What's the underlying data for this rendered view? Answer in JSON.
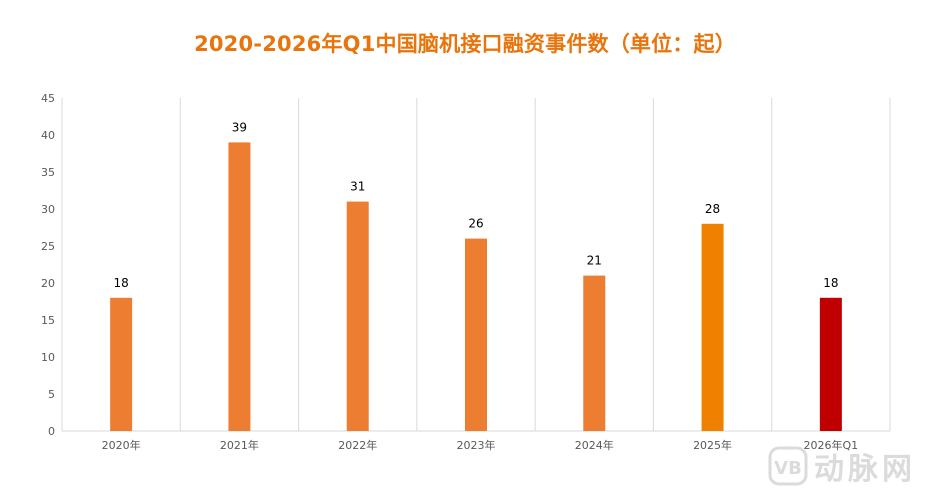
{
  "chart_data": {
    "type": "bar",
    "title": "2020-2026年Q1中国脑机接口融资事件数（单位：起）",
    "categories": [
      "2020年",
      "2021年",
      "2022年",
      "2023年",
      "2024年",
      "2025年",
      "2026年Q1"
    ],
    "values": [
      18,
      39,
      31,
      26,
      21,
      28,
      18
    ],
    "bar_colors": [
      "#ED7D31",
      "#ED7D31",
      "#ED7D31",
      "#ED7D31",
      "#ED7D31",
      "#F08000",
      "#C00000"
    ],
    "ylim": [
      0,
      45
    ],
    "yticks": [
      0,
      5,
      10,
      15,
      20,
      25,
      30,
      35,
      40,
      45
    ],
    "grid": "vertical separators",
    "data_labels": true
  },
  "watermark": {
    "text": "动脉网",
    "icon": "vb-logo-icon"
  }
}
